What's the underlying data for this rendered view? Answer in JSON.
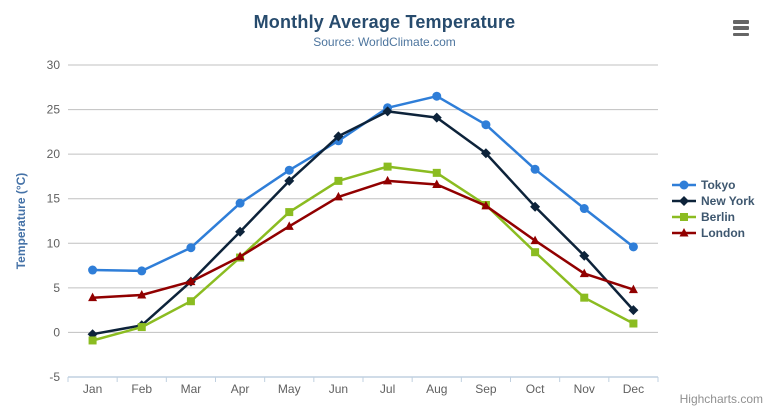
{
  "header": {
    "title": "Monthly Average Temperature",
    "subtitle": "Source: WorldClimate.com"
  },
  "credits": "Highcharts.com",
  "icons": {
    "export_menu": "hamburger-icon"
  },
  "axis": {
    "grid_color": "#C0C0C0",
    "line_color": "#C0D0E0",
    "label_color": "#606060"
  },
  "chart_data": {
    "type": "line",
    "title": "Monthly Average Temperature",
    "subtitle": "Source: WorldClimate.com",
    "categories": [
      "Jan",
      "Feb",
      "Mar",
      "Apr",
      "May",
      "Jun",
      "Jul",
      "Aug",
      "Sep",
      "Oct",
      "Nov",
      "Dec"
    ],
    "series": [
      {
        "name": "Tokyo",
        "color": "#2f7ed8",
        "marker": "circle",
        "values": [
          7.0,
          6.9,
          9.5,
          14.5,
          18.2,
          21.5,
          25.2,
          26.5,
          23.3,
          18.3,
          13.9,
          9.6
        ]
      },
      {
        "name": "New York",
        "color": "#0d233a",
        "marker": "diamond",
        "values": [
          -0.2,
          0.8,
          5.7,
          11.3,
          17.0,
          22.0,
          24.8,
          24.1,
          20.1,
          14.1,
          8.6,
          2.5
        ]
      },
      {
        "name": "Berlin",
        "color": "#8bbc21",
        "marker": "square",
        "values": [
          -0.9,
          0.6,
          3.5,
          8.4,
          13.5,
          17.0,
          18.6,
          17.9,
          14.3,
          9.0,
          3.9,
          1.0
        ]
      },
      {
        "name": "London",
        "color": "#910000",
        "marker": "triangle",
        "values": [
          3.9,
          4.2,
          5.7,
          8.5,
          11.9,
          15.2,
          17.0,
          16.6,
          14.2,
          10.3,
          6.6,
          4.8
        ]
      }
    ],
    "xlabel": "",
    "ylabel": "Temperature (°C)",
    "ylim": [
      -5,
      30
    ],
    "ytick_step": 5,
    "grid": true,
    "legend_position": "right"
  }
}
